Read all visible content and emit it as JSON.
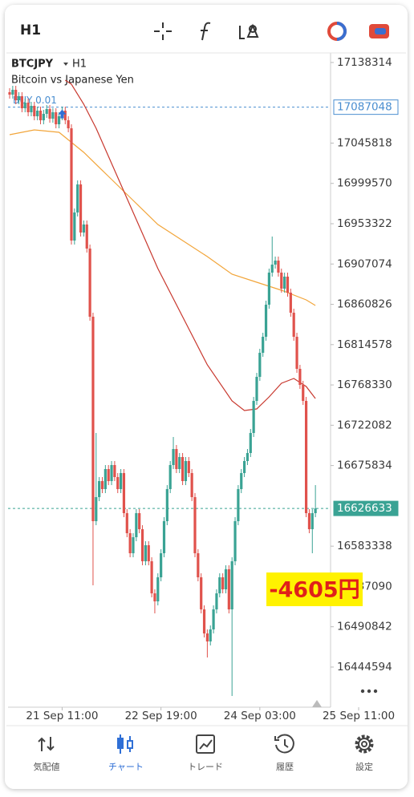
{
  "header": {
    "timeframe": "H1"
  },
  "chart_data": {
    "type": "candlestick",
    "symbol": "BTCJPY",
    "timeframe": "H1",
    "description": "Bitcoin vs Japanese Yen",
    "x": [
      0,
      1,
      2,
      3,
      4,
      5,
      6,
      7,
      8,
      9,
      10,
      11,
      12,
      13,
      14,
      15,
      16,
      17,
      18,
      19,
      20,
      21,
      22,
      23,
      24,
      25,
      26,
      27,
      28,
      29,
      30,
      31,
      32,
      33,
      34,
      35,
      36,
      37,
      38,
      39,
      40,
      41,
      42,
      43,
      44,
      45,
      46,
      47,
      48,
      49,
      50,
      51,
      52,
      53,
      54,
      55,
      56,
      57,
      58,
      59,
      60,
      61,
      62,
      63,
      64,
      65,
      66,
      67,
      68,
      69,
      70,
      71,
      72,
      73,
      74,
      75,
      76,
      77,
      78,
      79,
      80,
      81,
      82,
      83,
      84,
      85,
      86,
      87,
      88,
      89,
      90,
      91,
      92,
      93,
      94,
      95,
      96,
      97,
      98,
      99
    ],
    "open": [
      17104200,
      17101440,
      17106960,
      17095000,
      17099600,
      17085800,
      17092240,
      17081200,
      17088560,
      17076600,
      17083040,
      17072000,
      17079360,
      17084880,
      17073840,
      17081200,
      17067400,
      17076600,
      17083040,
      17072000,
      17062800,
      16934000,
      16966200,
      16998400,
      16943200,
      16952400,
      16924800,
      16846600,
      16612000,
      16639600,
      16658000,
      16648800,
      16671800,
      16658000,
      16676400,
      16662600,
      16648800,
      16667200,
      16621200,
      16598200,
      16575200,
      16593600,
      16621200,
      16602800,
      16566000,
      16584400,
      16566000,
      16529200,
      16520000,
      16547600,
      16575200,
      16612000,
      16648800,
      16676400,
      16694800,
      16671800,
      16685600,
      16658000,
      16681000,
      16667200,
      16639600,
      16575200,
      16547600,
      16510800,
      16483200,
      16474000,
      16487800,
      16510800,
      16529200,
      16547600,
      16533800,
      16556800,
      16510800,
      16566000,
      16612000,
      16648800,
      16667200,
      16681000,
      16690200,
      16713200,
      16750000,
      16777600,
      16805200,
      16823600,
      16860400,
      16897200,
      16906400,
      16911000,
      16897200,
      16878800,
      16892600,
      16874200,
      16851200,
      16823600,
      16786800,
      16768400,
      16750000,
      16621200,
      16602800,
      16621200
    ],
    "high": [
      17108800,
      17111560,
      17111560,
      17104200,
      17104200,
      17096840,
      17096840,
      17093160,
      17093160,
      17087640,
      17087640,
      17083960,
      17089480,
      17089480,
      17085800,
      17085800,
      17081200,
      17087640,
      17087640,
      17076600,
      17067400,
      16970800,
      17003000,
      17003000,
      16957000,
      16957000,
      16929400,
      16851200,
      16713200,
      16662600,
      16662600,
      16676400,
      16676400,
      16681000,
      16681000,
      16667200,
      16671800,
      16671800,
      16625800,
      16602800,
      16598200,
      16625800,
      16625800,
      16607400,
      16589000,
      16589000,
      16570600,
      16533800,
      16552200,
      16579800,
      16616600,
      16653400,
      16681000,
      16708600,
      16699400,
      16690200,
      16690200,
      16685600,
      16685600,
      16671800,
      16644200,
      16579800,
      16552200,
      16515400,
      16487800,
      16492400,
      16515400,
      16533800,
      16552200,
      16552200,
      16561400,
      16561400,
      16570600,
      16616600,
      16653400,
      16671800,
      16685600,
      16694800,
      16717800,
      16754600,
      16782200,
      16809800,
      16828200,
      16865000,
      16901800,
      16938600,
      16915600,
      16915600,
      16901800,
      16897200,
      16897200,
      16878800,
      16855800,
      16828200,
      16791400,
      16773000,
      16754600,
      16625800,
      16625800,
      16653400
    ],
    "low": [
      17096840,
      17096840,
      17090400,
      17090400,
      17081200,
      17081200,
      17076600,
      17076600,
      17072000,
      17072000,
      17067400,
      17067400,
      17074760,
      17069240,
      17069240,
      17062800,
      17062800,
      17072000,
      17067400,
      17058200,
      16929400,
      16929400,
      16961600,
      16938600,
      16938600,
      16920200,
      16842000,
      16538400,
      16607400,
      16635000,
      16644200,
      16644200,
      16653400,
      16653400,
      16658000,
      16644200,
      16644200,
      16616600,
      16593600,
      16570600,
      16570600,
      16589000,
      16598200,
      16561400,
      16561400,
      16561400,
      16524600,
      16506200,
      16515400,
      16543000,
      16570600,
      16607400,
      16644200,
      16671800,
      16667200,
      16667200,
      16653400,
      16653400,
      16662600,
      16635000,
      16570600,
      16543000,
      16506200,
      16478600,
      16455600,
      16469400,
      16483200,
      16506200,
      16524600,
      16529200,
      16529200,
      16506200,
      16411440,
      16561400,
      16607400,
      16644200,
      16662600,
      16676400,
      16685600,
      16708600,
      16745400,
      16773000,
      16800600,
      16819000,
      16855800,
      16892600,
      16901800,
      16892600,
      16874200,
      16874200,
      16869600,
      16846600,
      16819000,
      16782200,
      16763800,
      16745400,
      16616600,
      16598200,
      16575200,
      16616600
    ],
    "close": [
      17101440,
      17106960,
      17095000,
      17099600,
      17085800,
      17092240,
      17081200,
      17088560,
      17076600,
      17083040,
      17072000,
      17079360,
      17084880,
      17073840,
      17081200,
      17067400,
      17076600,
      17083040,
      17072000,
      17062800,
      16934000,
      16966200,
      16998400,
      16943200,
      16952400,
      16924800,
      16846600,
      16612000,
      16639600,
      16658000,
      16648800,
      16671800,
      16658000,
      16676400,
      16662600,
      16648800,
      16667200,
      16621200,
      16598200,
      16575200,
      16593600,
      16621200,
      16602800,
      16566000,
      16584400,
      16566000,
      16529200,
      16520000,
      16547600,
      16575200,
      16612000,
      16648800,
      16676400,
      16694800,
      16671800,
      16685600,
      16658000,
      16681000,
      16667200,
      16639600,
      16575200,
      16547600,
      16510800,
      16483200,
      16474000,
      16487800,
      16510800,
      16529200,
      16547600,
      16533800,
      16556800,
      16510800,
      16566000,
      16612000,
      16648800,
      16667200,
      16681000,
      16690200,
      16713200,
      16750000,
      16777600,
      16805200,
      16823600,
      16860400,
      16897200,
      16906400,
      16911000,
      16897200,
      16878800,
      16892600,
      16874200,
      16851200,
      16823600,
      16786800,
      16768400,
      16750000,
      16621200,
      16602800,
      16621200,
      16626633
    ],
    "up_color": "#3aa394",
    "down_color": "#e0524c",
    "moving_averages": [
      {
        "color": "#f2a53a",
        "x": [
          0,
          8,
          16,
          24,
          32,
          40,
          48,
          56,
          64,
          72,
          80,
          88,
          96,
          99
        ],
        "values": [
          17055440,
          17060960,
          17058200,
          17035200,
          17007600,
          16980000,
          16952400,
          16934000,
          16915600,
          16895360,
          16886160,
          16876960,
          16865920,
          16859480
        ]
      },
      {
        "color": "#c8382e",
        "x": [
          18,
          20,
          24,
          28,
          32,
          40,
          48,
          56,
          64,
          72,
          76,
          80,
          84,
          88,
          92,
          96,
          99
        ],
        "values": [
          17118000,
          17113400,
          17090400,
          17062800,
          17030600,
          16966200,
          16901800,
          16846600,
          16791400,
          16750000,
          16738960,
          16740800,
          16754600,
          16770240,
          16775760,
          16766560,
          16752760
        ]
      }
    ],
    "price_lines": [
      {
        "value": 17087048,
        "color": "#4a8ed0",
        "style": "outline"
      },
      {
        "value": 16626633,
        "color": "#3aa394",
        "style": "filled"
      }
    ],
    "position": {
      "label": "BUY 0.01",
      "x": 17
    },
    "xlim": [
      -0.52,
      103.9
    ],
    "ylim": [
      16398560,
      17147440
    ],
    "yticks": [
      17138314,
      17045818,
      16999570,
      16953322,
      16907074,
      16860826,
      16814578,
      16768330,
      16722082,
      16675834,
      16583338,
      16537090,
      16490842,
      16444594
    ],
    "xticks": [
      {
        "value": 17,
        "label": "21 Sep 11:00"
      },
      {
        "value": 49,
        "label": "22 Sep 19:00"
      },
      {
        "value": 81,
        "label": "24 Sep 03:00"
      },
      {
        "value": 113,
        "label": "25 Sep 11:00"
      }
    ],
    "profit": "-4605円"
  },
  "nav": {
    "items": [
      "気配値",
      "チャート",
      "トレード",
      "履歴",
      "設定"
    ],
    "active": 1
  }
}
